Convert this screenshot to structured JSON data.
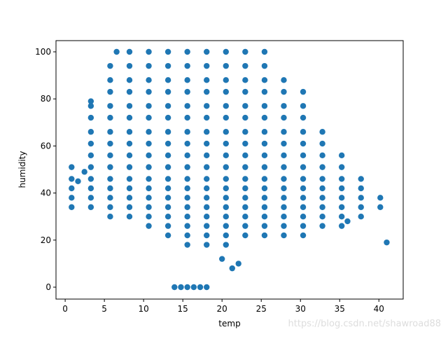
{
  "chart_data": {
    "type": "scatter",
    "x_label": "temp",
    "y_label": "humidity",
    "watermark": "https://blog.csdn.net/shawroad88",
    "color": "#1f77b4",
    "grid": false,
    "xlim": [
      -1.17,
      43.1
    ],
    "ylim": [
      -5.06,
      104.76
    ],
    "xticks": [
      0,
      5,
      10,
      15,
      20,
      25,
      30,
      35,
      40
    ],
    "yticks": [
      0,
      20,
      40,
      60,
      80,
      100
    ],
    "x": [
      8.2,
      10.66,
      13.12,
      15.58,
      18.04,
      20.5,
      22.96,
      25.42,
      5.74,
      8.2,
      10.66,
      13.12,
      15.58,
      18.04,
      20.5,
      22.96,
      25.42,
      5.74,
      8.2,
      10.66,
      13.12,
      15.58,
      18.04,
      20.5,
      22.96,
      25.42,
      27.88,
      5.74,
      8.2,
      10.66,
      13.12,
      15.58,
      18.04,
      20.5,
      22.96,
      25.42,
      27.88,
      30.34,
      3.28,
      5.74,
      8.2,
      10.66,
      13.12,
      15.58,
      18.04,
      20.5,
      22.96,
      25.42,
      27.88,
      30.34,
      3.28,
      5.74,
      8.2,
      10.66,
      13.12,
      15.58,
      18.04,
      20.5,
      22.96,
      25.42,
      27.88,
      30.34,
      3.28,
      5.74,
      8.2,
      10.66,
      13.12,
      15.58,
      18.04,
      20.5,
      22.96,
      25.42,
      27.88,
      30.34,
      32.8,
      3.28,
      5.74,
      8.2,
      10.66,
      13.12,
      15.58,
      18.04,
      20.5,
      22.96,
      25.42,
      27.88,
      30.34,
      32.8,
      3.28,
      5.74,
      8.2,
      10.66,
      13.12,
      15.58,
      18.04,
      20.5,
      22.96,
      25.42,
      27.88,
      30.34,
      32.8,
      35.26,
      0.82,
      3.28,
      5.74,
      8.2,
      10.66,
      13.12,
      15.58,
      18.04,
      20.5,
      22.96,
      25.42,
      27.88,
      30.34,
      32.8,
      35.26,
      0.82,
      3.28,
      5.74,
      8.2,
      10.66,
      13.12,
      15.58,
      18.04,
      20.5,
      22.96,
      25.42,
      27.88,
      30.34,
      32.8,
      35.26,
      37.72,
      0.82,
      3.28,
      5.74,
      8.2,
      10.66,
      13.12,
      15.58,
      18.04,
      20.5,
      22.96,
      25.42,
      27.88,
      30.34,
      32.8,
      35.26,
      37.72,
      0.82,
      3.28,
      5.74,
      8.2,
      10.66,
      13.12,
      15.58,
      18.04,
      20.5,
      22.96,
      25.42,
      27.88,
      30.34,
      32.8,
      35.26,
      37.72,
      40.18,
      3.28,
      5.74,
      8.2,
      10.66,
      13.12,
      15.58,
      18.04,
      20.5,
      22.96,
      25.42,
      27.88,
      30.34,
      32.8,
      35.26,
      37.72,
      40.18,
      5.74,
      8.2,
      10.66,
      13.12,
      15.58,
      18.04,
      20.5,
      22.96,
      25.42,
      27.88,
      30.34,
      32.8,
      35.26,
      37.72,
      10.66,
      13.12,
      15.58,
      18.04,
      20.5,
      22.96,
      25.42,
      27.88,
      30.34,
      32.8,
      35.26,
      13.12,
      15.58,
      18.04,
      20.5,
      22.96,
      25.42,
      27.88,
      30.34,
      15.58,
      18.04,
      20.5,
      13.94,
      14.76,
      15.58,
      16.4,
      17.22,
      18.04,
      41,
      21.3,
      22.1,
      20,
      6.56,
      1.64,
      2.46,
      3.28,
      36,
      0.82
    ],
    "y": [
      100,
      100,
      100,
      100,
      100,
      100,
      100,
      100,
      94,
      94,
      94,
      94,
      94,
      94,
      94,
      94,
      94,
      88,
      88,
      88,
      88,
      88,
      88,
      88,
      88,
      88,
      88,
      83,
      83,
      83,
      83,
      83,
      83,
      83,
      83,
      83,
      83,
      83,
      77,
      77,
      77,
      77,
      77,
      77,
      77,
      77,
      77,
      77,
      77,
      77,
      72,
      72,
      72,
      72,
      72,
      72,
      72,
      72,
      72,
      72,
      72,
      72,
      66,
      66,
      66,
      66,
      66,
      66,
      66,
      66,
      66,
      66,
      66,
      66,
      66,
      61,
      61,
      61,
      61,
      61,
      61,
      61,
      61,
      61,
      61,
      61,
      61,
      61,
      56,
      56,
      56,
      56,
      56,
      56,
      56,
      56,
      56,
      56,
      56,
      56,
      56,
      56,
      51,
      51,
      51,
      51,
      51,
      51,
      51,
      51,
      51,
      51,
      51,
      51,
      51,
      51,
      51,
      46,
      46,
      46,
      46,
      46,
      46,
      46,
      46,
      46,
      46,
      46,
      46,
      46,
      46,
      46,
      46,
      42,
      42,
      42,
      42,
      42,
      42,
      42,
      42,
      42,
      42,
      42,
      42,
      42,
      42,
      42,
      42,
      38,
      38,
      38,
      38,
      38,
      38,
      38,
      38,
      38,
      38,
      38,
      38,
      38,
      38,
      38,
      38,
      38,
      34,
      34,
      34,
      34,
      34,
      34,
      34,
      34,
      34,
      34,
      34,
      34,
      34,
      34,
      34,
      34,
      30,
      30,
      30,
      30,
      30,
      30,
      30,
      30,
      30,
      30,
      30,
      30,
      30,
      30,
      26,
      26,
      26,
      26,
      26,
      26,
      26,
      26,
      26,
      26,
      26,
      22,
      22,
      22,
      22,
      22,
      22,
      22,
      22,
      18,
      18,
      18,
      0,
      0,
      0,
      0,
      0,
      0,
      19,
      8,
      10,
      12,
      100,
      45,
      49,
      79,
      28,
      34
    ]
  }
}
